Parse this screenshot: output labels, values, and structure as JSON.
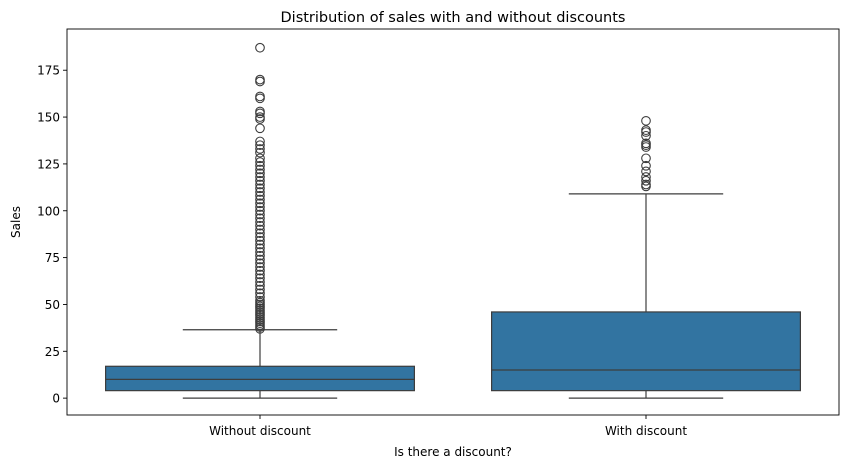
{
  "chart_data": {
    "type": "box",
    "title": "Distribution of sales with and without discounts",
    "xlabel": "Is there a discount?",
    "ylabel": "Sales",
    "ylim": [
      -9,
      197
    ],
    "yticks": [
      0,
      25,
      50,
      75,
      100,
      125,
      150,
      175
    ],
    "categories": [
      "Without discount",
      "With discount"
    ],
    "color": "#3274a1",
    "grid": false,
    "boxes": [
      {
        "category": "Without discount",
        "min": 0,
        "q1": 4,
        "median": 10,
        "q3": 17,
        "whisker_high": 36.5,
        "outliers": [
          37,
          38,
          39,
          40,
          41,
          42,
          43,
          44,
          45,
          46,
          47,
          48,
          49,
          50,
          51,
          52,
          54,
          56,
          58,
          60,
          62,
          64,
          66,
          68,
          70,
          72,
          74,
          76,
          78,
          80,
          82,
          84,
          86,
          88,
          90,
          92,
          94,
          96,
          98,
          100,
          102,
          104,
          106,
          108,
          110,
          112,
          114,
          116,
          118,
          120,
          122,
          124,
          126,
          128,
          131,
          133,
          135,
          137,
          144,
          149,
          150,
          152,
          153,
          160,
          161,
          169,
          170,
          187
        ]
      },
      {
        "category": "With discount",
        "min": 0,
        "q1": 4,
        "median": 15,
        "q3": 46,
        "whisker_high": 109,
        "outliers": [
          113,
          114,
          116,
          118,
          121,
          124,
          128,
          134,
          135,
          136,
          140,
          142,
          143,
          148
        ]
      }
    ]
  }
}
